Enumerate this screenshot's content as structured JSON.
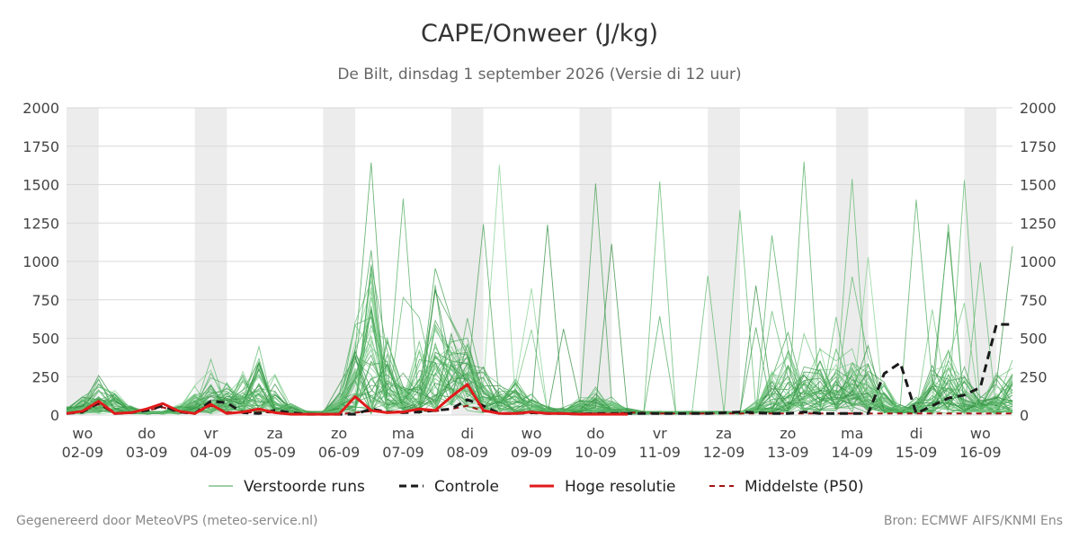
{
  "header": {
    "title": "CAPE/Onweer (J/kg)",
    "subtitle": "De Bilt, dinsdag  1 september 2026 (Versie di 12 uur)"
  },
  "footer": {
    "left": "Gegenereerd door MeteoVPS (meteo-service.nl)",
    "right": "Bron: ECMWF AIFS/KNMI Ens"
  },
  "chart_data": {
    "type": "line",
    "title": "CAPE/Onweer (J/kg)",
    "ylim": [
      0,
      2000
    ],
    "y_ticks": [
      "0",
      "250",
      "500",
      "750",
      "1000",
      "1250",
      "1500",
      "1750",
      "2000"
    ],
    "y_tick_values": [
      0,
      250,
      500,
      750,
      1000,
      1250,
      1500,
      1750,
      2000
    ],
    "x_ticks": [
      {
        "day": "wo",
        "date": "02-09"
      },
      {
        "day": "do",
        "date": "03-09"
      },
      {
        "day": "vr",
        "date": "04-09"
      },
      {
        "day": "za",
        "date": "05-09"
      },
      {
        "day": "zo",
        "date": "06-09"
      },
      {
        "day": "ma",
        "date": "07-09"
      },
      {
        "day": "di",
        "date": "08-09"
      },
      {
        "day": "wo",
        "date": "09-09"
      },
      {
        "day": "do",
        "date": "10-09"
      },
      {
        "day": "vr",
        "date": "11-09"
      },
      {
        "day": "za",
        "date": "12-09"
      },
      {
        "day": "zo",
        "date": "13-09"
      },
      {
        "day": "ma",
        "date": "14-09"
      },
      {
        "day": "di",
        "date": "15-09"
      },
      {
        "day": "wo",
        "date": "16-09"
      }
    ],
    "x_range_days": [
      -0.25,
      14.5
    ],
    "x_note": "x = days after 02-09 00:00 (label at day 0 = 02-09)",
    "shaded_bands_days": [
      [
        -0.25,
        0.25
      ],
      [
        1.75,
        2.25
      ],
      [
        3.75,
        4.25
      ],
      [
        5.75,
        6.25
      ],
      [
        7.75,
        8.25
      ],
      [
        9.75,
        10.25
      ],
      [
        11.75,
        12.25
      ],
      [
        13.75,
        14.25
      ]
    ],
    "grid": true,
    "legend_position": "bottom",
    "legend": [
      "Verstoorde runs",
      "Controle",
      "Hoge resolutie",
      "Middelste (P50)"
    ],
    "colors": {
      "ensemble": [
        "#3f9e4e",
        "#58b568",
        "#2e8b3c",
        "#6cc47a",
        "#4aa85a",
        "#81cf8d"
      ],
      "control": "#1a1a1a",
      "hires": "#e01b1b",
      "median": "#a31212",
      "shade": "#ececec",
      "grid": "#d9d9d9"
    },
    "series": [
      {
        "name": "Hoge resolutie",
        "x": [
          -0.25,
          0,
          0.25,
          0.5,
          0.75,
          1.0,
          1.25,
          1.5,
          1.75,
          2.0,
          2.25,
          2.5,
          2.75,
          3.0,
          3.25,
          3.5,
          3.75,
          4.0,
          4.25,
          4.5,
          4.75,
          5.0,
          5.25,
          5.5,
          5.75,
          6.0,
          6.25,
          6.5,
          6.75,
          7.0,
          7.25,
          7.5,
          7.75,
          8.0,
          8.25,
          8.5
        ],
        "values": [
          10,
          25,
          90,
          10,
          15,
          40,
          75,
          25,
          10,
          70,
          10,
          20,
          40,
          15,
          5,
          5,
          5,
          5,
          120,
          30,
          15,
          20,
          40,
          30,
          120,
          200,
          30,
          10,
          10,
          20,
          10,
          10,
          5,
          5,
          5,
          5
        ]
      },
      {
        "name": "Controle",
        "x": [
          -0.25,
          0,
          0.25,
          0.5,
          0.75,
          1.0,
          1.25,
          1.5,
          1.75,
          2.0,
          2.25,
          2.5,
          2.75,
          3.0,
          3.25,
          3.5,
          3.75,
          4.0,
          4.25,
          4.5,
          4.75,
          5.0,
          5.25,
          5.5,
          5.75,
          6.0,
          6.25,
          6.5,
          6.75,
          7.0,
          7.25,
          7.5,
          7.75,
          8.0,
          8.25,
          8.5,
          8.75,
          9.0,
          9.25,
          9.5,
          9.75,
          10.0,
          10.25,
          10.5,
          10.75,
          11.0,
          11.25,
          11.5,
          11.75,
          12.0,
          12.25,
          12.5,
          12.75,
          13.0,
          13.25,
          13.5,
          13.75,
          14.0,
          14.25,
          14.5
        ],
        "values": [
          10,
          20,
          80,
          10,
          15,
          30,
          60,
          20,
          10,
          90,
          80,
          15,
          10,
          30,
          15,
          5,
          5,
          5,
          5,
          40,
          20,
          15,
          20,
          30,
          40,
          100,
          60,
          10,
          10,
          15,
          10,
          10,
          5,
          10,
          10,
          10,
          10,
          10,
          10,
          10,
          10,
          15,
          20,
          15,
          10,
          10,
          20,
          10,
          10,
          10,
          10,
          270,
          340,
          10,
          60,
          110,
          130,
          180,
          590,
          590
        ]
      },
      {
        "name": "Middelste (P50)",
        "x": [
          -0.25,
          0,
          0.25,
          0.5,
          0.75,
          1.0,
          1.25,
          1.5,
          1.75,
          2.0,
          2.25,
          2.5,
          2.75,
          3.0,
          3.25,
          3.5,
          3.75,
          4.0,
          4.25,
          4.5,
          4.75,
          5.0,
          5.25,
          5.5,
          5.75,
          6.0,
          6.25,
          6.5,
          6.75,
          7.0,
          7.25,
          7.5,
          7.75,
          8.0,
          8.25,
          8.5,
          8.75,
          9.0,
          9.25,
          9.5,
          9.75,
          10.0,
          10.25,
          10.5,
          10.75,
          11.0,
          11.25,
          11.5,
          11.75,
          12.0,
          12.25,
          12.5,
          12.75,
          13.0,
          13.25,
          13.5,
          13.75,
          14.0,
          14.25,
          14.5
        ],
        "values": [
          10,
          25,
          70,
          10,
          15,
          30,
          50,
          20,
          10,
          60,
          20,
          15,
          20,
          15,
          5,
          5,
          5,
          5,
          15,
          25,
          20,
          25,
          30,
          25,
          40,
          60,
          25,
          10,
          10,
          15,
          10,
          10,
          10,
          10,
          10,
          15,
          15,
          10,
          10,
          10,
          10,
          10,
          10,
          10,
          10,
          10,
          10,
          10,
          10,
          10,
          10,
          10,
          10,
          10,
          10,
          10,
          10,
          10,
          10,
          10
        ]
      }
    ]
  }
}
